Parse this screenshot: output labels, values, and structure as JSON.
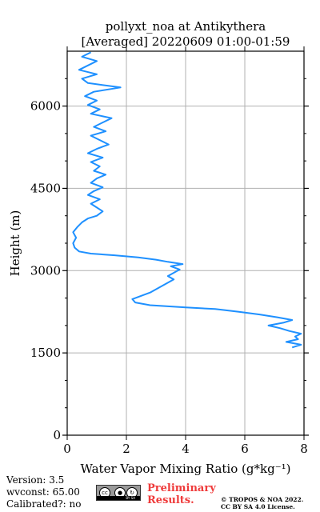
{
  "chart_data": {
    "type": "line",
    "title": [
      "pollyxt_noa at Antikythera",
      "[Averaged] 20220609 01:00-01:59"
    ],
    "xlabel": "Water Vapor Mixing Ratio",
    "xlabel_unit": "(g*kg⁻¹)",
    "ylabel": "Height (m)",
    "xlim": [
      0,
      8
    ],
    "ylim": [
      0,
      7000
    ],
    "xticks": [
      0,
      2,
      4,
      6,
      8
    ],
    "xtick_labels": [
      "0",
      "2",
      "4",
      "6",
      "8"
    ],
    "yticks": [
      0,
      1500,
      3000,
      4500,
      6000
    ],
    "ytick_labels": [
      "0",
      "1500",
      "3000",
      "4500",
      "6000"
    ],
    "grid": true,
    "series": [
      {
        "color": "#1e90ff",
        "points": [
          [
            7.6,
            1600
          ],
          [
            7.9,
            1650
          ],
          [
            7.4,
            1700
          ],
          [
            7.8,
            1750
          ],
          [
            7.7,
            1800
          ],
          [
            7.9,
            1850
          ],
          [
            7.5,
            1900
          ],
          [
            7.2,
            1950
          ],
          [
            6.8,
            2000
          ],
          [
            7.3,
            2050
          ],
          [
            7.6,
            2100
          ],
          [
            7.1,
            2150
          ],
          [
            6.5,
            2200
          ],
          [
            5.8,
            2250
          ],
          [
            5.0,
            2300
          ],
          [
            4.0,
            2330
          ],
          [
            2.8,
            2370
          ],
          [
            2.3,
            2420
          ],
          [
            2.2,
            2480
          ],
          [
            2.5,
            2540
          ],
          [
            2.8,
            2600
          ],
          [
            3.0,
            2660
          ],
          [
            3.2,
            2720
          ],
          [
            3.4,
            2780
          ],
          [
            3.6,
            2840
          ],
          [
            3.4,
            2900
          ],
          [
            3.6,
            2960
          ],
          [
            3.8,
            3020
          ],
          [
            3.5,
            3080
          ],
          [
            3.9,
            3120
          ],
          [
            3.4,
            3160
          ],
          [
            3.0,
            3200
          ],
          [
            2.4,
            3240
          ],
          [
            1.6,
            3280
          ],
          [
            0.8,
            3310
          ],
          [
            0.4,
            3350
          ],
          [
            0.25,
            3420
          ],
          [
            0.2,
            3500
          ],
          [
            0.3,
            3600
          ],
          [
            0.2,
            3700
          ],
          [
            0.35,
            3800
          ],
          [
            0.5,
            3880
          ],
          [
            0.7,
            3950
          ],
          [
            1.0,
            4000
          ],
          [
            1.2,
            4080
          ],
          [
            1.0,
            4150
          ],
          [
            0.8,
            4220
          ],
          [
            1.1,
            4300
          ],
          [
            0.7,
            4380
          ],
          [
            0.9,
            4450
          ],
          [
            1.2,
            4520
          ],
          [
            0.8,
            4600
          ],
          [
            1.0,
            4680
          ],
          [
            1.3,
            4750
          ],
          [
            0.9,
            4820
          ],
          [
            1.1,
            4900
          ],
          [
            0.8,
            4980
          ],
          [
            1.2,
            5060
          ],
          [
            0.7,
            5140
          ],
          [
            1.0,
            5220
          ],
          [
            1.4,
            5300
          ],
          [
            1.1,
            5380
          ],
          [
            0.8,
            5460
          ],
          [
            1.3,
            5540
          ],
          [
            0.9,
            5620
          ],
          [
            1.2,
            5700
          ],
          [
            1.5,
            5780
          ],
          [
            0.8,
            5860
          ],
          [
            1.1,
            5940
          ],
          [
            0.7,
            6020
          ],
          [
            1.0,
            6100
          ],
          [
            0.6,
            6180
          ],
          [
            0.9,
            6260
          ],
          [
            1.8,
            6340
          ],
          [
            0.7,
            6420
          ],
          [
            0.5,
            6500
          ],
          [
            1.0,
            6580
          ],
          [
            0.4,
            6660
          ],
          [
            0.7,
            6740
          ],
          [
            1.0,
            6820
          ],
          [
            0.5,
            6900
          ],
          [
            0.8,
            6980
          ]
        ]
      }
    ]
  },
  "footer": {
    "version": "Version: 3.5",
    "wvconst": "wvconst:  65.00",
    "calibrated": "Calibrated?: no",
    "preliminary_line1": "Preliminary",
    "preliminary_line2": "Results.",
    "copyright_line1": "© TROPOS & NOA 2022.",
    "copyright_line2": "CC BY SA 4.0 License.",
    "cc_label": "cc",
    "cc_strip": "BY   SA"
  },
  "colors": {
    "line": "#1e90ff",
    "grid": "#b0b0b0",
    "preliminary": "#ef3b3b"
  }
}
